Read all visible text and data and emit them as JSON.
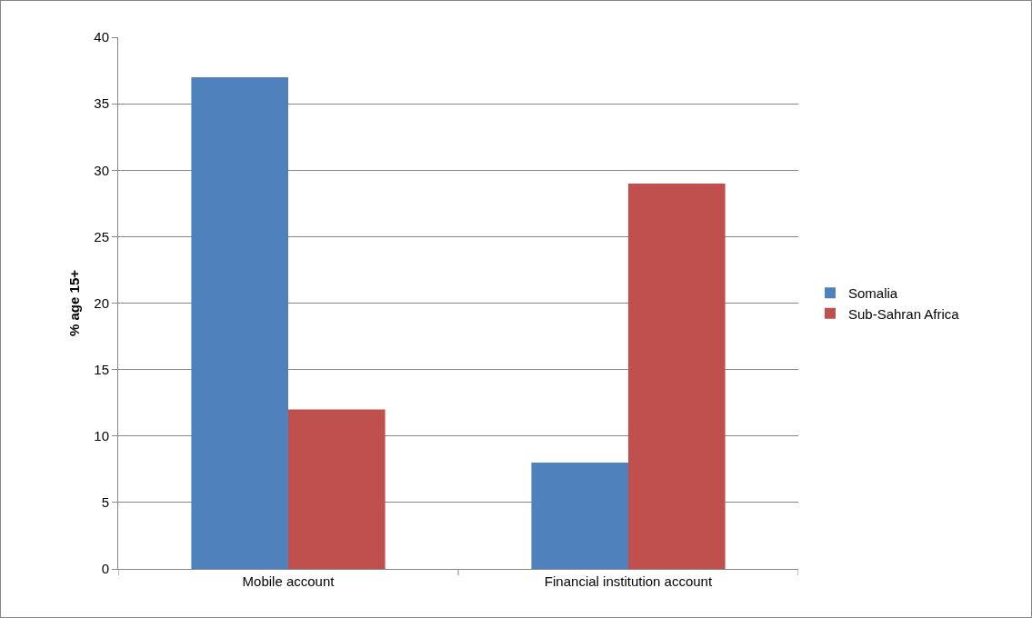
{
  "chart_data": {
    "type": "bar",
    "ylabel": "% age 15+",
    "categories": [
      "Mobile account",
      "Financial institution account"
    ],
    "series": [
      {
        "name": "Somalia",
        "color": "#4f81bd",
        "values": [
          37,
          8
        ]
      },
      {
        "name": "Sub-Sahran Africa",
        "color": "#c0504d",
        "values": [
          12,
          29
        ]
      }
    ],
    "ylim": [
      0,
      40
    ],
    "yticks": [
      0,
      5,
      10,
      15,
      20,
      25,
      30,
      35,
      40
    ],
    "grid": "y",
    "legend": "right"
  }
}
